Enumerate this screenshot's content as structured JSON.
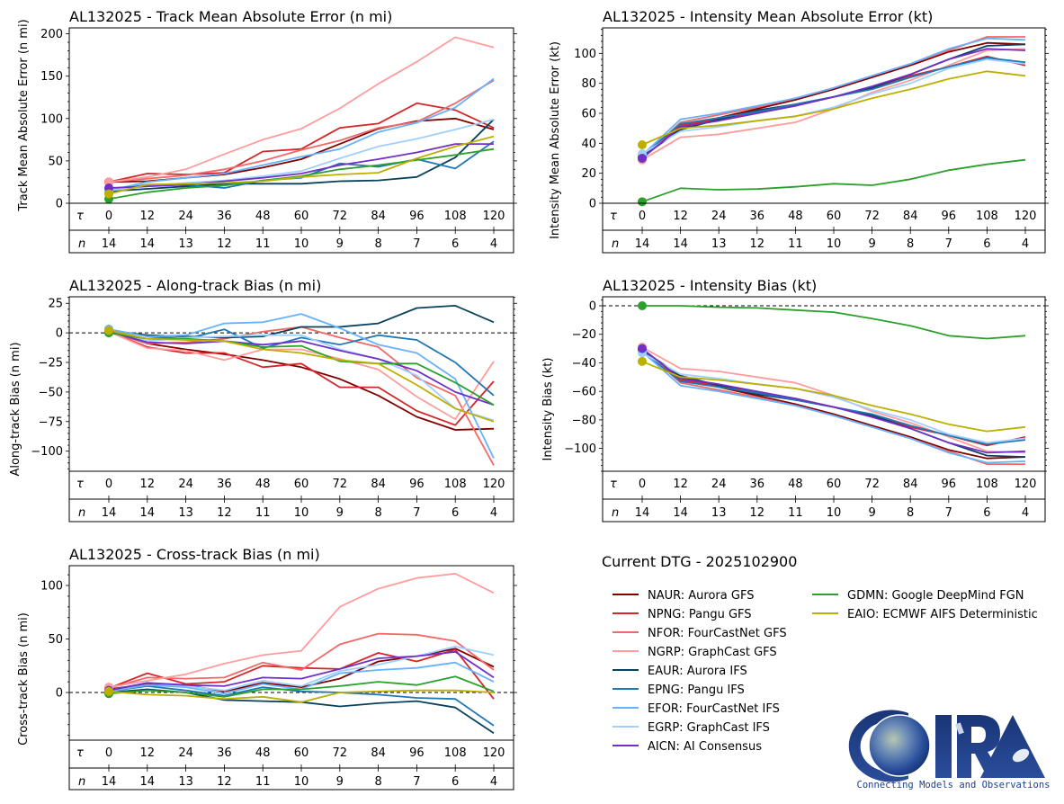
{
  "figure": {
    "dtg_label": "Current DTG - 2025102900",
    "logo": {
      "name": "CIRA",
      "tagline": "Connecting Models and Observations"
    }
  },
  "legend": [
    {
      "id": "NAUR",
      "label": "NAUR: Aurora GFS",
      "color": "#800000"
    },
    {
      "id": "NPNG",
      "label": "NPNG: Pangu GFS",
      "color": "#d62728"
    },
    {
      "id": "NFOR",
      "label": "NFOR: FourCastNet GFS",
      "color": "#f26868"
    },
    {
      "id": "NGRP",
      "label": "NGRP: GraphCast GFS",
      "color": "#ff9c9c"
    },
    {
      "id": "EAUR",
      "label": "EAUR: Aurora IFS",
      "color": "#08415c"
    },
    {
      "id": "EPNG",
      "label": "EPNG: Pangu IFS",
      "color": "#1f77b4"
    },
    {
      "id": "EFOR",
      "label": "EFOR: FourCastNet IFS",
      "color": "#66b2ff"
    },
    {
      "id": "EGRP",
      "label": "EGRP: GraphCast IFS",
      "color": "#9fcfff"
    },
    {
      "id": "AICN",
      "label": "AICN: AI Consensus",
      "color": "#7030c8"
    },
    {
      "id": "GDMN",
      "label": "GDMN: Google DeepMind FGN",
      "color": "#2ca02c"
    },
    {
      "id": "EAIO",
      "label": "EAIO: ECMWF AIFS Deterministic",
      "color": "#bcaf00"
    }
  ],
  "chart_data": [
    {
      "id": "track_mae",
      "type": "line",
      "title": "AL132025 - Track Mean Absolute Error (n mi)",
      "ylabel": "Track Mean Absolute Error (n mi)",
      "tau_label": "τ",
      "n_label": "n",
      "x": [
        0,
        12,
        24,
        36,
        48,
        60,
        72,
        84,
        96,
        108,
        120
      ],
      "n": [
        14,
        14,
        13,
        12,
        11,
        10,
        9,
        8,
        7,
        6,
        4
      ],
      "ylim": [
        0,
        207
      ],
      "yticks": [
        0,
        50,
        100,
        150,
        200
      ],
      "zero_line": false,
      "series": [
        {
          "id": "NAUR",
          "values": [
            25,
            26,
            30,
            34,
            42,
            52,
            70,
            88,
            97,
            100,
            87
          ]
        },
        {
          "id": "NPNG",
          "values": [
            25,
            35,
            34,
            36,
            61,
            64,
            89,
            94,
            118,
            110,
            89
          ]
        },
        {
          "id": "NFOR",
          "values": [
            25,
            29,
            33,
            40,
            50,
            63,
            74,
            89,
            96,
            118,
            145
          ]
        },
        {
          "id": "NGRP",
          "values": [
            25,
            31,
            40,
            58,
            75,
            88,
            112,
            141,
            167,
            196,
            184
          ]
        },
        {
          "id": "EAUR",
          "values": [
            14,
            17,
            20,
            23,
            23,
            23,
            26,
            27,
            31,
            54,
            99
          ]
        },
        {
          "id": "EPNG",
          "values": [
            15,
            22,
            22,
            18,
            27,
            30,
            47,
            43,
            52,
            41,
            73
          ]
        },
        {
          "id": "EFOR",
          "values": [
            15,
            25,
            30,
            35,
            45,
            55,
            64,
            84,
            95,
            113,
            147
          ]
        },
        {
          "id": "EGRP",
          "values": [
            15,
            20,
            24,
            27,
            32,
            38,
            53,
            67,
            76,
            87,
            99
          ]
        },
        {
          "id": "AICN",
          "values": [
            18,
            20,
            22,
            26,
            30,
            35,
            45,
            52,
            60,
            70,
            70
          ]
        },
        {
          "id": "GDMN",
          "values": [
            5,
            13,
            18,
            21,
            27,
            32,
            40,
            45,
            51,
            57,
            64
          ]
        },
        {
          "id": "EAIO",
          "values": [
            11,
            22,
            23,
            24,
            26,
            31,
            34,
            36,
            53,
            67,
            79
          ]
        }
      ]
    },
    {
      "id": "intensity_mae",
      "type": "line",
      "title": "AL132025 - Intensity Mean Absolute Error (kt)",
      "ylabel": "Intensity Mean Absolute Error (kt)",
      "tau_label": "τ",
      "n_label": "n",
      "x": [
        0,
        12,
        24,
        36,
        48,
        60,
        72,
        84,
        96,
        108,
        120
      ],
      "n": [
        14,
        14,
        13,
        12,
        11,
        10,
        9,
        8,
        7,
        6,
        4
      ],
      "ylim": [
        0,
        117
      ],
      "yticks": [
        0,
        20,
        40,
        60,
        80,
        100
      ],
      "zero_line": false,
      "series": [
        {
          "id": "NAUR",
          "values": [
            31,
            50,
            57,
            63,
            69,
            76,
            84,
            92,
            101,
            107,
            106
          ]
        },
        {
          "id": "NPNG",
          "values": [
            31,
            52,
            56,
            61,
            65,
            71,
            77,
            85,
            91,
            98,
            92
          ]
        },
        {
          "id": "NFOR",
          "values": [
            30,
            54,
            59,
            64,
            70,
            77,
            85,
            93,
            102,
            111,
            111
          ]
        },
        {
          "id": "NGRP",
          "values": [
            29,
            44,
            46,
            50,
            54,
            63,
            74,
            82,
            92,
            102,
            103
          ]
        },
        {
          "id": "EAUR",
          "values": [
            31,
            49,
            56,
            62,
            66,
            71,
            77,
            86,
            96,
            105,
            106
          ]
        },
        {
          "id": "EPNG",
          "values": [
            32,
            53,
            57,
            61,
            66,
            71,
            76,
            84,
            91,
            97,
            94
          ]
        },
        {
          "id": "EFOR",
          "values": [
            32,
            56,
            60,
            65,
            70,
            77,
            85,
            93,
            103,
            110,
            109
          ]
        },
        {
          "id": "EGRP",
          "values": [
            33,
            48,
            51,
            55,
            58,
            64,
            73,
            80,
            90,
            96,
            93
          ]
        },
        {
          "id": "AICN",
          "values": [
            30,
            51,
            55,
            60,
            65,
            71,
            78,
            86,
            96,
            103,
            102
          ]
        },
        {
          "id": "GDMN",
          "values": [
            1,
            10,
            9,
            9.5,
            11,
            13,
            12,
            16,
            22,
            26,
            29
          ]
        },
        {
          "id": "EAIO",
          "values": [
            39,
            50,
            52,
            55,
            58,
            63,
            70,
            76,
            83,
            88,
            85
          ]
        }
      ]
    },
    {
      "id": "along_track_bias",
      "type": "line",
      "title": "AL132025 - Along-track Bias (n mi)",
      "ylabel": "Along-track Bias (n mi)",
      "tau_label": "τ",
      "n_label": "n",
      "x": [
        0,
        12,
        24,
        36,
        48,
        60,
        72,
        84,
        96,
        108,
        120
      ],
      "n": [
        14,
        14,
        13,
        12,
        11,
        10,
        9,
        8,
        7,
        6,
        4
      ],
      "ylim": [
        -117,
        30.5
      ],
      "yticks": [
        -100,
        -75,
        -50,
        -25,
        0,
        25
      ],
      "zero_line": true,
      "series": [
        {
          "id": "NAUR",
          "values": [
            1,
            -9,
            -14,
            -18,
            -23,
            -29,
            -39,
            -53,
            -71,
            -82,
            -81
          ]
        },
        {
          "id": "NPNG",
          "values": [
            1,
            -12,
            -17,
            -17,
            -29,
            -26,
            -46,
            -46,
            -66,
            -78,
            -41
          ]
        },
        {
          "id": "NFOR",
          "values": [
            1,
            -9,
            -8,
            -5,
            1,
            5,
            -4,
            -12,
            -38,
            -53,
            -112
          ]
        },
        {
          "id": "NGRP",
          "values": [
            1,
            -13,
            -15,
            -23,
            -14,
            -14,
            -22,
            -31,
            -54,
            -73,
            -24
          ]
        },
        {
          "id": "EAUR",
          "values": [
            2,
            -2,
            -3,
            -4,
            -3,
            5,
            5,
            8,
            21,
            23,
            9
          ]
        },
        {
          "id": "EPNG",
          "values": [
            3,
            -3,
            -5,
            3,
            -13,
            -4,
            -10,
            -2,
            -6,
            -25,
            -53
          ]
        },
        {
          "id": "EFOR",
          "values": [
            3,
            -3,
            -2,
            8,
            9,
            16,
            4,
            -10,
            -17,
            -39,
            -106
          ]
        },
        {
          "id": "EGRP",
          "values": [
            2,
            -7,
            -4,
            -3,
            -2,
            -2,
            -14,
            -22,
            -36,
            -64,
            -74
          ]
        },
        {
          "id": "AICN",
          "values": [
            1,
            -8,
            -9,
            -7,
            -10,
            -7,
            -15,
            -22,
            -32,
            -50,
            -61
          ]
        },
        {
          "id": "GDMN",
          "values": [
            0,
            -5,
            -5,
            -7,
            -12,
            -11,
            -24,
            -26,
            -26,
            -42,
            -61
          ]
        },
        {
          "id": "EAIO",
          "values": [
            2,
            -5,
            -6,
            -7,
            -14,
            -17,
            -23,
            -26,
            -44,
            -64,
            -75
          ]
        }
      ]
    },
    {
      "id": "intensity_bias",
      "type": "line",
      "title": "AL132025 - Intensity Bias (kt)",
      "ylabel": "Intensity Bias (kt)",
      "tau_label": "τ",
      "n_label": "n",
      "x": [
        0,
        12,
        24,
        36,
        48,
        60,
        72,
        84,
        96,
        108,
        120
      ],
      "n": [
        14,
        14,
        13,
        12,
        11,
        10,
        9,
        8,
        7,
        6,
        4
      ],
      "ylim": [
        -116,
        6.3
      ],
      "yticks": [
        -100,
        -80,
        -60,
        -40,
        -20,
        0
      ],
      "zero_line": true,
      "series": [
        {
          "id": "NAUR",
          "values": [
            -31,
            -50,
            -57,
            -63,
            -69,
            -76,
            -84,
            -92,
            -101,
            -107,
            -106
          ]
        },
        {
          "id": "NPNG",
          "values": [
            -31,
            -52,
            -56,
            -61,
            -65,
            -71,
            -77,
            -85,
            -91,
            -98,
            -92
          ]
        },
        {
          "id": "NFOR",
          "values": [
            -30,
            -54,
            -59,
            -64,
            -70,
            -77,
            -85,
            -93,
            -102,
            -111,
            -111
          ]
        },
        {
          "id": "NGRP",
          "values": [
            -29,
            -44,
            -46,
            -50,
            -54,
            -63,
            -74,
            -82,
            -92,
            -102,
            -103
          ]
        },
        {
          "id": "EAUR",
          "values": [
            -31,
            -49,
            -56,
            -62,
            -66,
            -71,
            -77,
            -86,
            -96,
            -105,
            -106
          ]
        },
        {
          "id": "EPNG",
          "values": [
            -32,
            -53,
            -57,
            -61,
            -66,
            -71,
            -76,
            -84,
            -91,
            -97,
            -94
          ]
        },
        {
          "id": "EFOR",
          "values": [
            -32,
            -56,
            -60,
            -65,
            -70,
            -77,
            -85,
            -93,
            -103,
            -110,
            -109
          ]
        },
        {
          "id": "EGRP",
          "values": [
            -33,
            -48,
            -51,
            -55,
            -58,
            -64,
            -73,
            -80,
            -90,
            -96,
            -93
          ]
        },
        {
          "id": "AICN",
          "values": [
            -30,
            -51,
            -55,
            -60,
            -65,
            -71,
            -78,
            -86,
            -96,
            -103,
            -102
          ]
        },
        {
          "id": "GDMN",
          "values": [
            0,
            0,
            -1,
            -1.5,
            -3,
            -4.5,
            -9,
            -14,
            -21,
            -23,
            -21
          ]
        },
        {
          "id": "EAIO",
          "values": [
            -39,
            -50,
            -52,
            -55,
            -58,
            -63,
            -70,
            -76,
            -83,
            -88,
            -85
          ]
        }
      ]
    },
    {
      "id": "cross_track_bias",
      "type": "line",
      "title": "AL132025 - Cross-track Bias (n mi)",
      "ylabel": "Cross-track Bias (n mi)",
      "tau_label": "τ",
      "n_label": "n",
      "x": [
        0,
        12,
        24,
        36,
        48,
        60,
        72,
        84,
        96,
        108,
        120
      ],
      "n": [
        14,
        14,
        13,
        12,
        11,
        10,
        9,
        8,
        7,
        6,
        4
      ],
      "ylim": [
        -44.5,
        118.5
      ],
      "yticks": [
        0,
        50,
        100
      ],
      "zero_line": true,
      "series": [
        {
          "id": "NAUR",
          "values": [
            3,
            8,
            7,
            1,
            9,
            5,
            13,
            29,
            34,
            41,
            24
          ]
        },
        {
          "id": "NPNG",
          "values": [
            4,
            18,
            8,
            10,
            25,
            23,
            22,
            37,
            29,
            40,
            -6
          ]
        },
        {
          "id": "NFOR",
          "values": [
            4,
            14,
            13,
            14,
            28,
            21,
            45,
            55,
            54,
            48,
            21
          ]
        },
        {
          "id": "NGRP",
          "values": [
            5,
            11,
            17,
            27,
            35,
            39,
            80,
            97,
            107,
            111,
            93
          ]
        },
        {
          "id": "EAUR",
          "values": [
            0,
            3,
            0,
            -7,
            -8,
            -9,
            -13,
            -10,
            -8,
            -14,
            -38
          ]
        },
        {
          "id": "EPNG",
          "values": [
            1,
            6,
            2,
            -3,
            5,
            1,
            0,
            -2,
            -5,
            -6,
            -31
          ]
        },
        {
          "id": "EFOR",
          "values": [
            1,
            7,
            5,
            -1,
            8,
            3,
            18,
            21,
            23,
            28,
            10
          ]
        },
        {
          "id": "EGRP",
          "values": [
            2,
            9,
            6,
            2,
            11,
            6,
            20,
            26,
            34,
            43,
            35
          ]
        },
        {
          "id": "AICN",
          "values": [
            2,
            9,
            7,
            6,
            14,
            13,
            22,
            32,
            34,
            38,
            14
          ]
        },
        {
          "id": "GDMN",
          "values": [
            -1,
            2,
            0,
            -4,
            3,
            3,
            6,
            10,
            7,
            15,
            1
          ]
        },
        {
          "id": "EAIO",
          "values": [
            1,
            -2,
            -3,
            -6,
            -4,
            -9,
            0,
            1,
            2,
            2,
            0
          ]
        }
      ]
    }
  ]
}
